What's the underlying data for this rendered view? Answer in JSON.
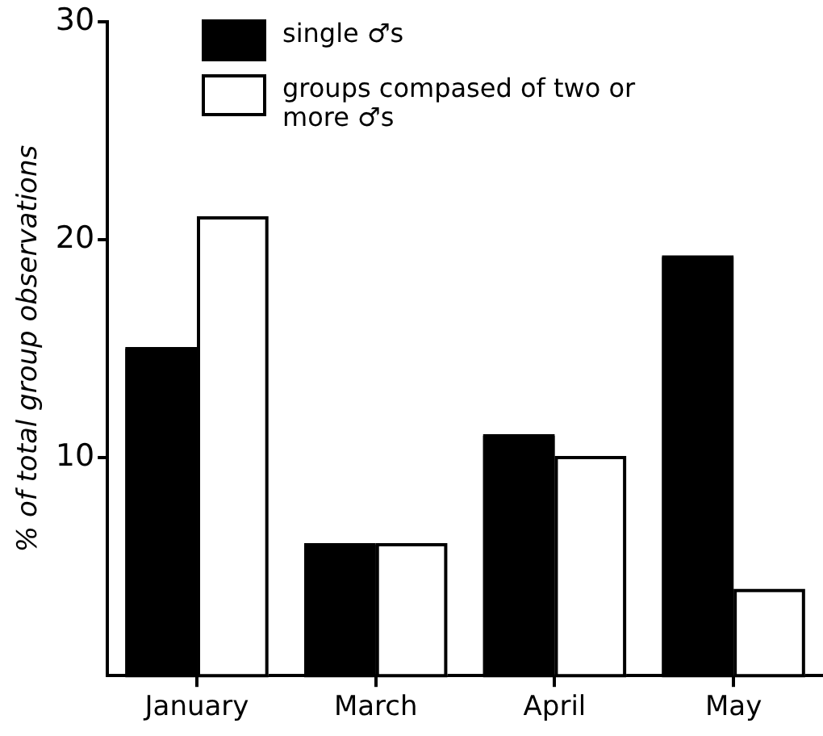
{
  "chart_data": {
    "type": "bar",
    "ylabel": "% of total group observations",
    "categories": [
      "January",
      "March",
      "April",
      "May"
    ],
    "series": [
      {
        "name": "single ♂s",
        "color": "#000000",
        "values": [
          15,
          6,
          11,
          19.2
        ]
      },
      {
        "name": "groups compased of two or more ♂s",
        "color": "#ffffff",
        "values": [
          21,
          6,
          10,
          3.9
        ]
      }
    ],
    "ylim": [
      0,
      30
    ],
    "yticks": [
      10,
      20,
      30
    ],
    "legend": "top left"
  }
}
